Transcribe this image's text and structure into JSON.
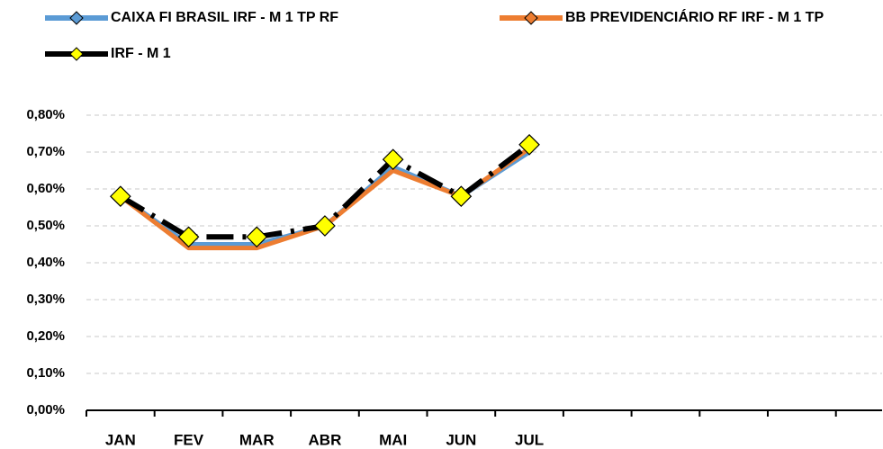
{
  "chart_data": {
    "type": "line",
    "categories": [
      "JAN",
      "FEV",
      "MAR",
      "ABR",
      "MAI",
      "JUN",
      "JUL",
      null,
      null,
      null,
      null,
      null
    ],
    "series": [
      {
        "name": "CAIXA FI BRASIL IRF - M 1 TP RF",
        "color": "#5b9bd5",
        "values": [
          0.58,
          0.45,
          0.45,
          0.5,
          0.66,
          0.58,
          0.7,
          null,
          null,
          null,
          null,
          null
        ]
      },
      {
        "name": "BB PREVIDENCIÁRIO RF IRF - M 1 TP",
        "color": "#ed7d31",
        "values": [
          0.58,
          0.44,
          0.44,
          0.5,
          0.65,
          0.58,
          0.71,
          null,
          null,
          null,
          null,
          null
        ]
      },
      {
        "name": "IRF - M 1",
        "color": "#000000",
        "marker_color": "#ffff00",
        "values": [
          0.58,
          0.47,
          0.47,
          0.5,
          0.68,
          0.58,
          0.72,
          null,
          null,
          null,
          null,
          null
        ]
      }
    ],
    "ylim": [
      0,
      0.8
    ],
    "yticks": [
      {
        "value": 0,
        "label": "0,00%"
      },
      {
        "value": 0.1,
        "label": "0,10%"
      },
      {
        "value": 0.2,
        "label": "0,20%"
      },
      {
        "value": 0.3,
        "label": "0,30%"
      },
      {
        "value": 0.4,
        "label": "0,40%"
      },
      {
        "value": 0.5,
        "label": "0,50%"
      },
      {
        "value": 0.6,
        "label": "0,60%"
      },
      {
        "value": 0.7,
        "label": "0,70%"
      },
      {
        "value": 0.8,
        "label": "0,80%"
      }
    ],
    "grid": true
  }
}
